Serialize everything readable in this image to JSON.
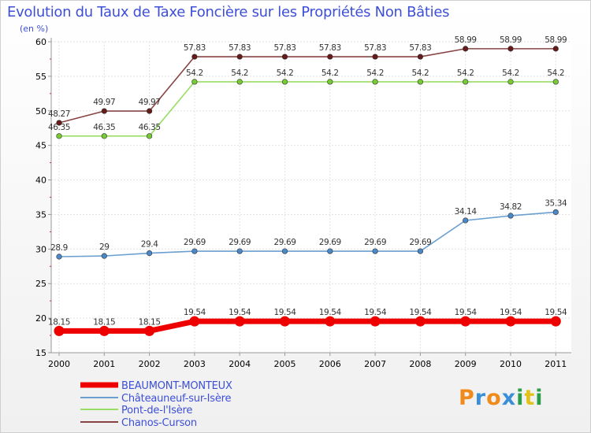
{
  "chart_data": {
    "type": "line",
    "title": "Evolution du Taux de Taxe Foncière sur les Propriétés Non Bâties",
    "ylabel": "(en %)",
    "ylim": [
      15,
      60
    ],
    "yticks": [
      15,
      20,
      25,
      30,
      35,
      40,
      45,
      50,
      55,
      60
    ],
    "categories": [
      "2000",
      "2001",
      "2002",
      "2003",
      "2004",
      "2005",
      "2006",
      "2007",
      "2008",
      "2009",
      "2010",
      "2011"
    ],
    "series": [
      {
        "name": "BEAUMONT-MONTEUX",
        "color": "#ee0000",
        "bold": true,
        "values": [
          18.15,
          18.15,
          18.15,
          19.54,
          19.54,
          19.54,
          19.54,
          19.54,
          19.54,
          19.54,
          19.54,
          19.54
        ],
        "labels": [
          "18.15",
          "18.15",
          "18.15",
          "19.54",
          "19.54",
          "19.54",
          "19.54",
          "19.54",
          "19.54",
          "19.54",
          "19.54",
          "19.54"
        ]
      },
      {
        "name": "Châteauneuf-sur-Isère",
        "color": "#6a9fd0",
        "marker": "#4a88c8",
        "values": [
          28.9,
          29,
          29.4,
          29.69,
          29.69,
          29.69,
          29.69,
          29.69,
          29.69,
          34.14,
          34.82,
          35.34
        ],
        "labels": [
          "28.9",
          "29",
          "29.4",
          "29.69",
          "29.69",
          "29.69",
          "29.69",
          "29.69",
          "29.69",
          "34.14",
          "34.82",
          "35.34"
        ]
      },
      {
        "name": "Pont-de-l'Isère",
        "color": "#99dd66",
        "marker": "#77cc33",
        "values": [
          46.35,
          46.35,
          46.35,
          54.2,
          54.2,
          54.2,
          54.2,
          54.2,
          54.2,
          54.2,
          54.2,
          54.2
        ],
        "labels": [
          "46.35",
          "46.35",
          "46.35",
          "54.2",
          "54.2",
          "54.2",
          "54.2",
          "54.2",
          "54.2",
          "54.2",
          "54.2",
          "54.2"
        ]
      },
      {
        "name": "Chanos-Curson",
        "color": "#884444",
        "marker": "#661a1a",
        "values": [
          48.27,
          49.97,
          49.97,
          57.83,
          57.83,
          57.83,
          57.83,
          57.83,
          57.83,
          58.99,
          58.99,
          58.99
        ],
        "labels": [
          "48.27",
          "49.97",
          "49.97",
          "57.83",
          "57.83",
          "57.83",
          "57.83",
          "57.83",
          "57.83",
          "58.99",
          "58.99",
          "58.99"
        ]
      }
    ],
    "logo": "Proxiti"
  }
}
